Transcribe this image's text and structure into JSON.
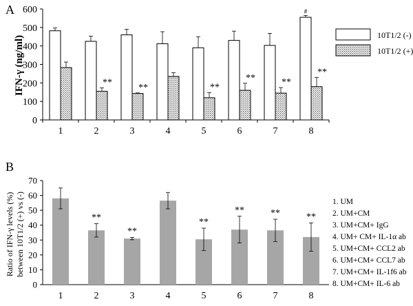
{
  "figure": {
    "panels": [
      "A",
      "B"
    ]
  },
  "chart_data": [
    {
      "panel": "A",
      "type": "bar",
      "categories": [
        "1",
        "2",
        "3",
        "4",
        "5",
        "6",
        "7",
        "8"
      ],
      "ylabel": "IFN-γ (ng/ml)",
      "ylim": [
        0,
        600
      ],
      "yticks": [
        "0",
        "100",
        "200",
        "300",
        "400",
        "500",
        "600"
      ],
      "grid": false,
      "legend_position": "right",
      "series": [
        {
          "name": "10T1/2 (-)",
          "pattern": "white",
          "values": [
            482,
            425,
            460,
            412,
            390,
            430,
            403,
            555
          ],
          "errors": [
            15,
            28,
            30,
            65,
            60,
            50,
            65,
            10
          ],
          "annotations": [
            "",
            "",
            "",
            "",
            "",
            "",
            "",
            "#"
          ]
        },
        {
          "name": "10T1/2 (+)",
          "pattern": "dotted",
          "values": [
            283,
            155,
            143,
            235,
            120,
            160,
            145,
            180
          ],
          "errors": [
            30,
            18,
            3,
            20,
            28,
            38,
            30,
            50
          ],
          "annotations": [
            "",
            "**",
            "**",
            "",
            "**",
            "**",
            "**",
            "**"
          ]
        }
      ]
    },
    {
      "panel": "B",
      "type": "bar",
      "categories": [
        "1",
        "2",
        "3",
        "4",
        "5",
        "6",
        "7",
        "8"
      ],
      "ylabel_lines": [
        "Ratio of IFN-γ levels (%)",
        "between 10T1/2 (+) vs (-)"
      ],
      "ylim": [
        0,
        70
      ],
      "yticks": [
        "0",
        "10",
        "20",
        "30",
        "40",
        "50",
        "60",
        "70"
      ],
      "grid": false,
      "color": "#a6a6a6",
      "series": [
        {
          "values": [
            58,
            36.5,
            31,
            56.5,
            30.5,
            37,
            36.5,
            32
          ],
          "errors": [
            7,
            4.5,
            0.8,
            5.5,
            7.5,
            9,
            7.5,
            9.5
          ],
          "annotations": [
            "",
            "**",
            "**",
            "",
            "**",
            "**",
            "**",
            "**"
          ]
        }
      ],
      "key": [
        "1. UM",
        "2. UM+CM",
        "3. UM+CM+ IgG",
        "4. UM+ CM+ IL-1α ab",
        "5. UM+CM+ CCL2 ab",
        "6. UM+CM+ CCL7 ab",
        "7. UM+CM+ IL-1f6 ab",
        "8. UM+CM+ IL-6 ab"
      ]
    }
  ]
}
